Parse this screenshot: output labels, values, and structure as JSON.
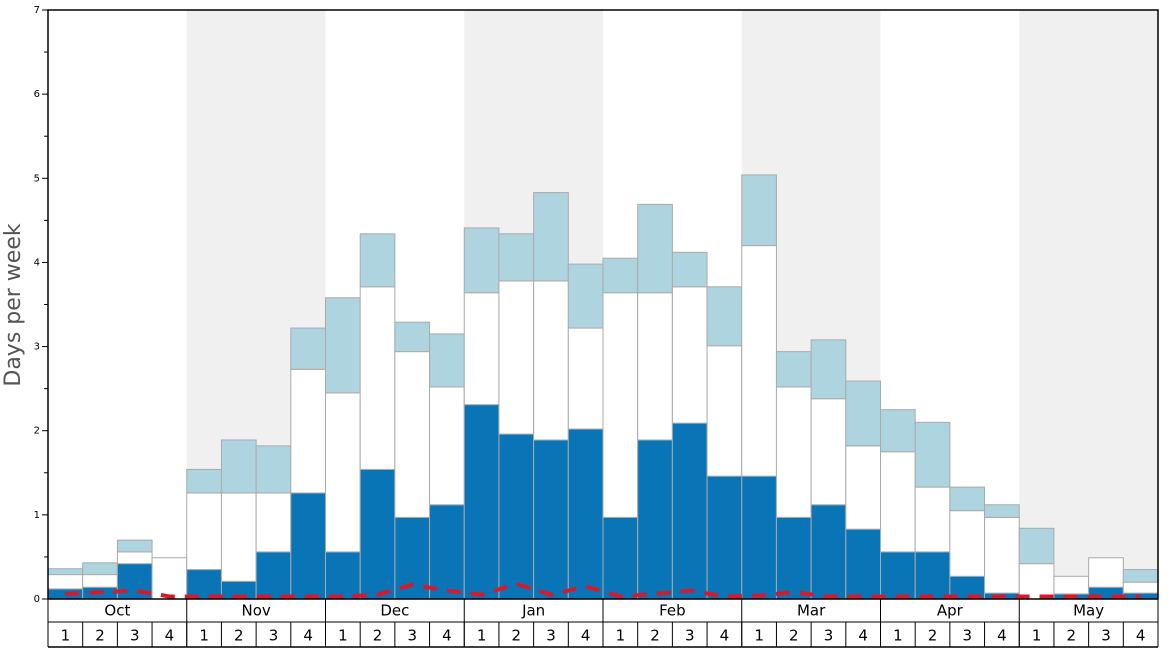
{
  "chart_data": {
    "type": "stacked_bar",
    "y_label": "Days per week",
    "months": [
      "Oct",
      "Nov",
      "Dec",
      "Jan",
      "Feb",
      "Mar",
      "Apr",
      "May"
    ],
    "categories": [
      "1",
      "2",
      "3",
      "4",
      "1",
      "2",
      "3",
      "4",
      "1",
      "2",
      "3",
      "4",
      "1",
      "2",
      "3",
      "4",
      "1",
      "2",
      "3",
      "4",
      "1",
      "2",
      "3",
      "4",
      "1",
      "2",
      "3",
      "4",
      "1",
      "2",
      "3",
      "4"
    ],
    "series": [
      {
        "color": "#0a75b6",
        "values": [
          0.12,
          0.14,
          0.42,
          0,
          0.35,
          0.21,
          0.56,
          1.26,
          0.56,
          1.54,
          0.97,
          1.12,
          2.31,
          1.96,
          1.89,
          2.02,
          0.97,
          1.89,
          2.09,
          1.46,
          1.46,
          0.97,
          1.12,
          0.83,
          0.56,
          0.56,
          0.27,
          0.07,
          0,
          0.06,
          0.14,
          0.07
        ]
      },
      {
        "color": "#ffffff",
        "values": [
          0.17,
          0.15,
          0.14,
          0.49,
          0.91,
          1.05,
          0.7,
          1.47,
          1.89,
          2.17,
          1.97,
          1.4,
          1.33,
          1.82,
          1.89,
          1.2,
          2.67,
          1.75,
          1.62,
          1.55,
          2.74,
          1.55,
          1.26,
          0.99,
          1.19,
          0.77,
          0.78,
          0.9,
          0.42,
          0.21,
          0.35,
          0.13
        ]
      },
      {
        "color": "#aed4e0",
        "values": [
          0.07,
          0.14,
          0.14,
          0,
          0.28,
          0.63,
          0.56,
          0.49,
          1.13,
          0.63,
          0.35,
          0.63,
          0.77,
          0.56,
          1.05,
          0.76,
          0.41,
          1.05,
          0.41,
          0.7,
          0.84,
          0.42,
          0.7,
          0.77,
          0.5,
          0.77,
          0.28,
          0.15,
          0.42,
          0,
          0,
          0.15
        ]
      }
    ],
    "line": {
      "color": "#d7192e",
      "values": [
        0.06,
        0.08,
        0.1,
        0.03,
        0.03,
        0.03,
        0.03,
        0.03,
        0.03,
        0.05,
        0.17,
        0.1,
        0.05,
        0.18,
        0.05,
        0.15,
        0.03,
        0.06,
        0.1,
        0.03,
        0.04,
        0.08,
        0.03,
        0.03,
        0.03,
        0.03,
        0.03,
        0.03,
        0.03,
        0.03,
        0.03,
        0.03
      ]
    },
    "ylim": [
      0,
      7
    ],
    "yticks": [
      0,
      1,
      2,
      3,
      4,
      5,
      6,
      7
    ],
    "minor_yticks": [
      0.5,
      1.5,
      2.5,
      3.5,
      4.5,
      5.5,
      6.5
    ],
    "band_color": "#f0f0f0",
    "bar_edge": "#aaaaaa"
  }
}
